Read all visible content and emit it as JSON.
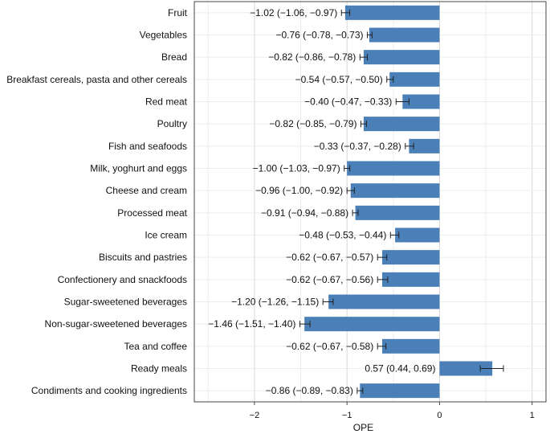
{
  "chart_data": {
    "type": "bar",
    "orientation": "horizontal",
    "title": "",
    "xlabel": "OPE",
    "ylabel": "",
    "xlim": [
      -2.65,
      1.15
    ],
    "xticks": [
      -2,
      -1,
      0,
      1
    ],
    "xtick_labels": [
      "−2",
      "−1",
      "0",
      "1"
    ],
    "grid": true,
    "bar_color": "#4a7fb8",
    "categories": [
      "Fruit",
      "Vegetables",
      "Bread",
      "Breakfast cereals, pasta and other cereals",
      "Red meat",
      "Poultry",
      "Fish and seafoods",
      "Milk, yoghurt and eggs",
      "Cheese and cream",
      "Processed meat",
      "Ice cream",
      "Biscuits and pastries",
      "Confectionery and snackfoods",
      "Sugar-sweetened beverages",
      "Non-sugar-sweetened beverages",
      "Tea and coffee",
      "Ready meals",
      "Condiments and cooking ingredients"
    ],
    "values": [
      -1.02,
      -0.76,
      -0.82,
      -0.54,
      -0.4,
      -0.82,
      -0.33,
      -1.0,
      -0.96,
      -0.91,
      -0.48,
      -0.62,
      -0.62,
      -1.2,
      -1.46,
      -0.62,
      0.57,
      -0.86
    ],
    "ci_low": [
      -1.06,
      -0.78,
      -0.86,
      -0.57,
      -0.47,
      -0.85,
      -0.37,
      -1.03,
      -1.0,
      -0.94,
      -0.53,
      -0.67,
      -0.67,
      -1.26,
      -1.51,
      -0.67,
      0.44,
      -0.89
    ],
    "ci_high": [
      -0.97,
      -0.73,
      -0.78,
      -0.5,
      -0.33,
      -0.79,
      -0.28,
      -0.97,
      -0.92,
      -0.88,
      -0.44,
      -0.57,
      -0.56,
      -1.15,
      -1.4,
      -0.58,
      0.69,
      -0.83
    ],
    "data_labels": [
      "−1.02 (−1.06, −0.97)",
      "−0.76 (−0.78, −0.73)",
      "−0.82 (−0.86, −0.78)",
      "−0.54 (−0.57, −0.50)",
      "−0.40 (−0.47, −0.33)",
      "−0.82 (−0.85, −0.79)",
      "−0.33 (−0.37, −0.28)",
      "−1.00 (−1.03, −0.97)",
      "−0.96 (−1.00, −0.92)",
      "−0.91 (−0.94, −0.88)",
      "−0.48 (−0.53, −0.44)",
      "−0.62 (−0.67, −0.57)",
      "−0.62 (−0.67, −0.56)",
      "−1.20 (−1.26, −1.15)",
      "−1.46 (−1.51, −1.40)",
      "−0.62 (−0.67, −0.58)",
      "0.57 (0.44, 0.69)",
      "−0.86 (−0.89, −0.83)"
    ]
  }
}
